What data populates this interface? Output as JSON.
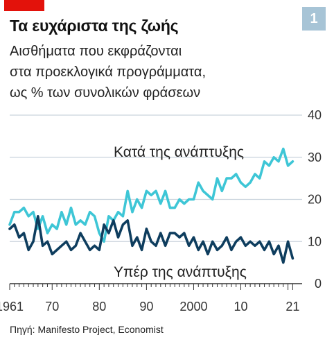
{
  "badge": "1",
  "title": "Τα ευχάριστα της ζωής",
  "subtitle_lines": [
    "Αισθήματα που εκφράζονται",
    "στα προεκλογικά προγράμματα,",
    "ως % των συνολικών φράσεων"
  ],
  "source": "Πηγή: Manifesto Project, Economist",
  "colors": {
    "accent": "#e3120b",
    "anti_growth": "#3ec6d6",
    "pro_growth": "#0e3d5e",
    "grid": "#c9d3dc",
    "badge": "#a7c4d6"
  },
  "chart_data": {
    "type": "line",
    "title": "Τα ευχάριστα της ζωής",
    "xlabel": "",
    "ylabel": "",
    "xlim": [
      1961,
      2023
    ],
    "ylim": [
      0,
      40
    ],
    "yticks": [
      0,
      10,
      20,
      30,
      40
    ],
    "xticks": [
      1961,
      1970,
      1980,
      1990,
      2000,
      2010,
      2021
    ],
    "xtick_labels": [
      "1961",
      "70",
      "80",
      "90",
      "2000",
      "10",
      "21"
    ],
    "grid": true,
    "series": [
      {
        "name": "Κατά της ανάπτυξης",
        "x": [
          1961,
          1962,
          1963,
          1964,
          1965,
          1966,
          1967,
          1968,
          1969,
          1970,
          1971,
          1972,
          1973,
          1974,
          1975,
          1976,
          1977,
          1978,
          1979,
          1980,
          1981,
          1982,
          1983,
          1984,
          1985,
          1986,
          1987,
          1988,
          1989,
          1990,
          1991,
          1992,
          1993,
          1994,
          1995,
          1996,
          1997,
          1998,
          1999,
          2000,
          2001,
          2002,
          2003,
          2004,
          2005,
          2006,
          2007,
          2008,
          2009,
          2010,
          2011,
          2012,
          2013,
          2014,
          2015,
          2016,
          2017,
          2018,
          2019,
          2020,
          2021
        ],
        "values": [
          14,
          17,
          17,
          18,
          16,
          17,
          13,
          16,
          12,
          14,
          13,
          17,
          14,
          18,
          14,
          15,
          14,
          17,
          16,
          12,
          10,
          16,
          15,
          17,
          16,
          22,
          17,
          20,
          18,
          22,
          21,
          22,
          19,
          22,
          18,
          18,
          20,
          19,
          20,
          20,
          24,
          22,
          21,
          20,
          25,
          22,
          25,
          25,
          26,
          24,
          23,
          24,
          26,
          25,
          29,
          28,
          30,
          29,
          32,
          28,
          29
        ]
      },
      {
        "name": "Υπέρ της ανάπτυξης",
        "x": [
          1961,
          1962,
          1963,
          1964,
          1965,
          1966,
          1967,
          1968,
          1969,
          1970,
          1971,
          1972,
          1973,
          1974,
          1975,
          1976,
          1977,
          1978,
          1979,
          1980,
          1981,
          1982,
          1983,
          1984,
          1985,
          1986,
          1987,
          1988,
          1989,
          1990,
          1991,
          1992,
          1993,
          1994,
          1995,
          1996,
          1997,
          1998,
          1999,
          2000,
          2001,
          2002,
          2003,
          2004,
          2005,
          2006,
          2007,
          2008,
          2009,
          2010,
          2011,
          2012,
          2013,
          2014,
          2015,
          2016,
          2017,
          2018,
          2019,
          2020,
          2021
        ],
        "values": [
          13,
          14,
          11,
          12,
          8,
          10,
          16,
          9,
          10,
          7,
          8,
          9,
          10,
          8,
          9,
          12,
          10,
          8,
          9,
          8,
          14,
          12,
          15,
          11,
          14,
          15,
          9,
          11,
          8,
          13,
          10,
          9,
          12,
          9,
          12,
          12,
          11,
          12,
          9,
          11,
          8,
          10,
          7,
          10,
          8,
          9,
          11,
          8,
          10,
          11,
          9,
          10,
          9,
          10,
          8,
          10,
          7,
          9,
          5,
          10,
          6
        ]
      }
    ],
    "annotations": [
      "Κατά της ανάπτυξης",
      "Υπέρ της ανάπτυξης"
    ]
  }
}
